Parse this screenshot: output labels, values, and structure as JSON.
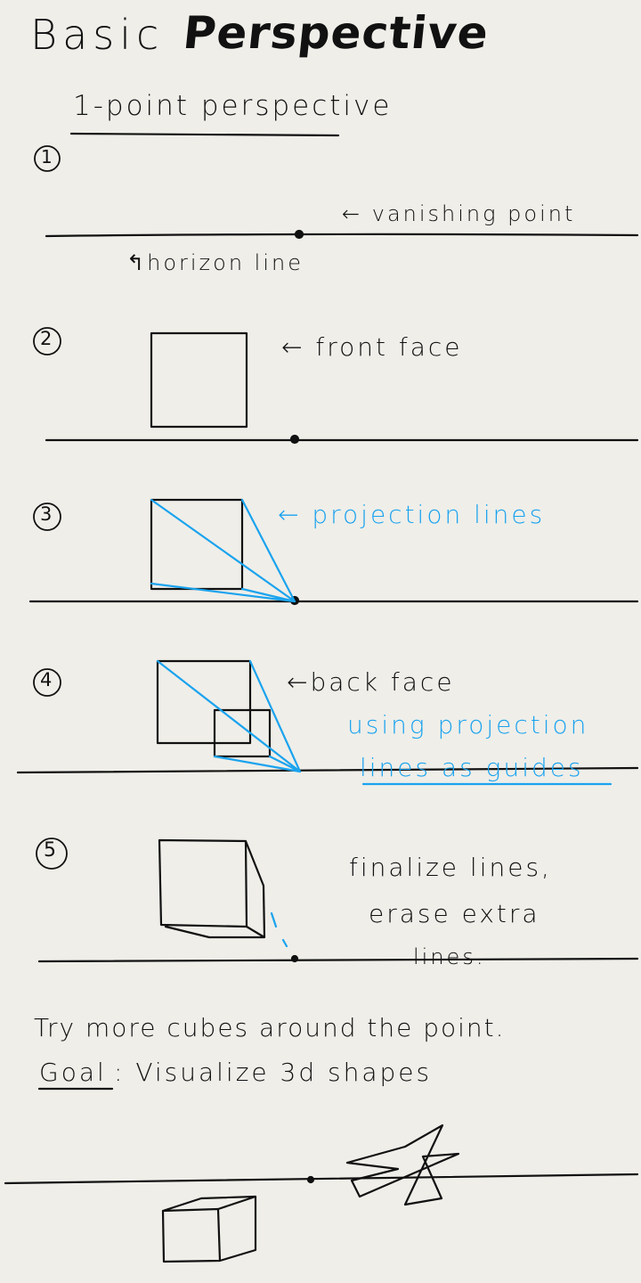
{
  "title": {
    "part1": "Basic",
    "part2": "Perspective"
  },
  "subtitle": "1-point perspective",
  "steps": [
    "①",
    "②",
    "③",
    "④",
    "⑤"
  ],
  "labels": {
    "vanishing_point": "← vanishing point",
    "horizon_line": "↰horizon line",
    "front_face": "← front face",
    "projection_lines": "← projection lines",
    "back_face": "←back face",
    "using_projection": "using projection",
    "lines_as_guides": "lines as guides",
    "finalize_1": "finalize lines,",
    "finalize_2": "erase extra",
    "finalize_3": "lines."
  },
  "closing": {
    "try_more": "Try more cubes around the point.",
    "goal_word": "Goal",
    "goal_text": ": Visualize 3d shapes"
  },
  "colors": {
    "background": "#efeee9",
    "ink": "#111111",
    "blue": "#1aa3ee"
  }
}
